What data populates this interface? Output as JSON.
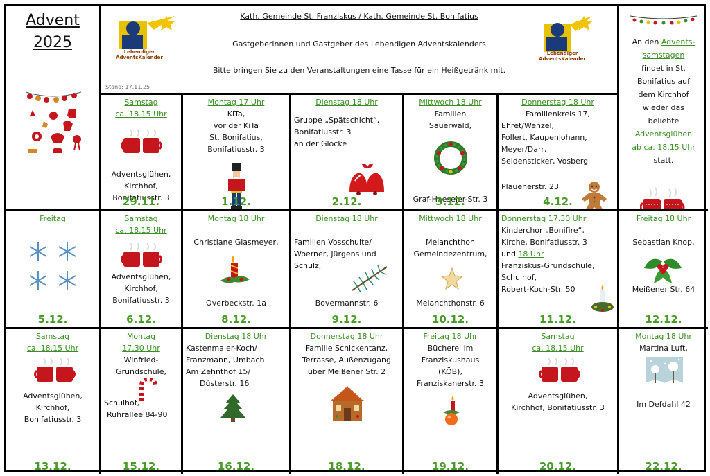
{
  "title": {
    "line1": "Advent",
    "line2": "2025"
  },
  "header": {
    "line1": "Kath. Gemeinde St. Franziskus / Kath. Gemeinde St. Bonifatius",
    "line2": "Gastgeberinnen und Gastgeber des Lebendigen Adventskalenders",
    "line3": "Bitte bringen Sie zu den Veranstaltungen eine Tasse für ein Heißgetränk mit.",
    "stand": "Stand: 17.11.25",
    "logo_text_1": "Lebendiger",
    "logo_text_2": "AdventsKalender"
  },
  "right_info": {
    "p1": "An den ",
    "link1": "Advents-",
    "link2": "samstagen",
    "p2": "findet in St.",
    "p3": "Bonifatius auf",
    "p4": "dem Kirchhof",
    "p5": "wieder das",
    "p6": "beliebte",
    "link3": "Adventsglühen",
    "link4": "ab ca. 18.15 Uhr",
    "p7": "statt."
  },
  "row1": [
    {
      "head1": "Samstag",
      "head2": "ca. 18.15 Uhr",
      "lines": [
        "Adventsglühen,",
        "Kirchhof,",
        "Bonifatiusstr. 3"
      ],
      "date": "29.11.",
      "icon": "mug-icon"
    },
    {
      "head1": "Montag 17 Uhr",
      "lines": [
        "KiTa,",
        "vor der KiTa",
        "St. Bonifatius,",
        "Bonifatiusstr. 3"
      ],
      "date": "1.12.",
      "icon": "nutcracker-icon"
    },
    {
      "head1": "Dienstag 18 Uhr",
      "lines": [
        "Gruppe „Spätschicht“,",
        "Bonifatiusstr. 3",
        "an der Glocke"
      ],
      "date": "2.12.",
      "icon": "bells-icon"
    },
    {
      "head1": "Mittwoch 18 Uhr",
      "lines": [
        "Familien",
        "Sauerwald,"
      ],
      "foot": "Graf-Haeseler-Str. 3",
      "date": "3.12.",
      "icon": "wreath-icon"
    },
    {
      "head1": "Donnerstag 18 Uhr",
      "lines": [
        "Familienkreis 17,",
        "Ehret/Wenzel,",
        "Follert, Kaupenjohann,",
        "Meyer/Darr,",
        "Seidensticker, Vosberg"
      ],
      "foot": "Plauenerstr. 23",
      "date": "4.12.",
      "icon": "gingerbread-icon"
    }
  ],
  "row2": [
    {
      "head1": "Freitag",
      "date": "5.12.",
      "icon": "snowflake-icon"
    },
    {
      "head1": "Samstag",
      "head2": "ca. 18.15 Uhr",
      "lines": [
        "Adventsglühen,",
        "Kirchhof,",
        "Bonifatiusstr. 3"
      ],
      "date": "6.12.",
      "icon": "mug-icon"
    },
    {
      "head1": "Montag 18 Uhr",
      "lines": [
        "Christiane Glasmeyer,"
      ],
      "foot": "Overbeckstr. 1a",
      "date": "8.12.",
      "icon": "candle-icon"
    },
    {
      "head1": "Dienstag 18 Uhr",
      "lines": [
        "Familien Vosschulte/",
        "Woerner, Jürgens und",
        "Schulz,"
      ],
      "foot": "Bovermannstr. 6",
      "date": "9.12.",
      "icon": "fir-branch-icon"
    },
    {
      "head1": "Mittwoch 18 Uhr",
      "lines": [
        "Melanchthon",
        "Gemeindezentrum,"
      ],
      "foot": "Melanchthonstr. 6",
      "date": "10.12.",
      "icon": "star-icon"
    },
    {
      "head1": "Donnerstag 17.30 Uhr",
      "lines": [
        "Kinderchor „Bonifire“,",
        "Kirche, Bonifatiusstr. 3"
      ],
      "und": "und ",
      "head2": "18 Uhr",
      "lines2": [
        "Franziskus-Grundschule,",
        "Schulhof,",
        "Robert-Koch-Str. 50"
      ],
      "date": "11.12.",
      "icon": "candle-wreath-icon"
    },
    {
      "head1": "Freitag 18 Uhr",
      "lines": [
        "Sebastian Knop,"
      ],
      "foot": "Meißener Str. 64",
      "date": "12.12.",
      "icon": "holly-icon"
    }
  ],
  "row3": [
    {
      "head1": "Samstag",
      "head2": "ca. 18.15 Uhr",
      "lines": [
        "Adventsglühen,",
        "Kirchhof,",
        "Bonifatiusstr. 3"
      ],
      "date": "13.12.",
      "icon": "mug-icon"
    },
    {
      "head1": "Montag",
      "head2": "17.30 Uhr",
      "lines": [
        "Winfried-",
        "Grundschule,"
      ],
      "foot1": "Schulhof,",
      "foot2": "Ruhrallee 84-90",
      "date": "15.12.",
      "icon": "candy-cane-icon"
    },
    {
      "head1": "Dienstag 18 Uhr",
      "lines": [
        "Kastenmaier-Koch/",
        "Franzmann, Umbach",
        "Am Zehnthof 15/",
        "Düsterstr. 16"
      ],
      "date": "16.12.",
      "icon": "tree-icon"
    },
    {
      "head1": "Donnerstag 18 Uhr",
      "lines": [
        "Familie Schickentanz,",
        "Terrasse, Außenzugang",
        "über Meißener Str. 2"
      ],
      "date": "18.12.",
      "icon": "gingerbread-house-icon"
    },
    {
      "head1": "Freitag 18 Uhr",
      "lines": [
        "Bücherei im",
        "Franziskushaus",
        "(KÖB),",
        "Franziskanerstr. 3"
      ],
      "date": "19.12.",
      "icon": "candle-ornament-icon"
    },
    {
      "head1": "Samstag",
      "head2": "ca. 18.15 Uhr",
      "lines": [
        "Adventsglühen,",
        "Kirchhof, Bonifatiusstr. 3"
      ],
      "date": "20.12.",
      "icon": "mug-icon"
    },
    {
      "head1": "Montag 18 Uhr",
      "lines": [
        "Martina Luft,"
      ],
      "foot": "Im Defdahl 42",
      "date": "22.12.",
      "icon": "winter-landscape-icon"
    }
  ],
  "colors": {
    "green": "#3a8f24",
    "date_green": "#4a9a2a",
    "red": "#c4161c"
  }
}
